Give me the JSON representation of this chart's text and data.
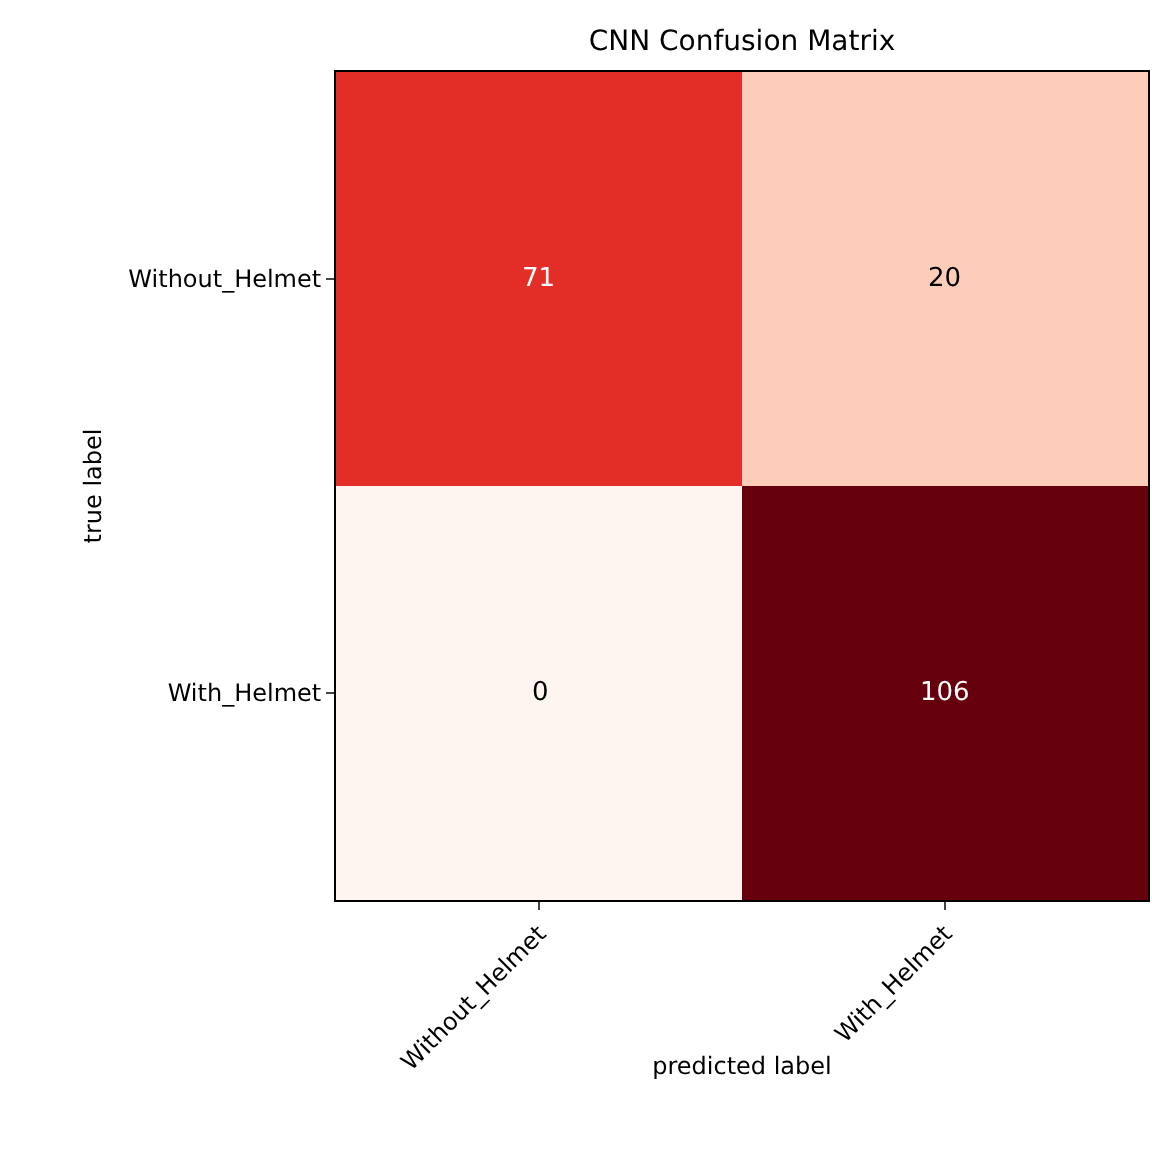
{
  "chart_data": {
    "type": "heatmap",
    "title": "CNN Confusion Matrix",
    "xlabel": "predicted label",
    "ylabel": "true label",
    "categories": [
      "Without_Helmet",
      "With_Helmet"
    ],
    "y_categories": [
      "Without_Helmet",
      "With_Helmet"
    ],
    "cells": [
      [
        71,
        20
      ],
      [
        0,
        106
      ]
    ],
    "data_labels": true
  }
}
